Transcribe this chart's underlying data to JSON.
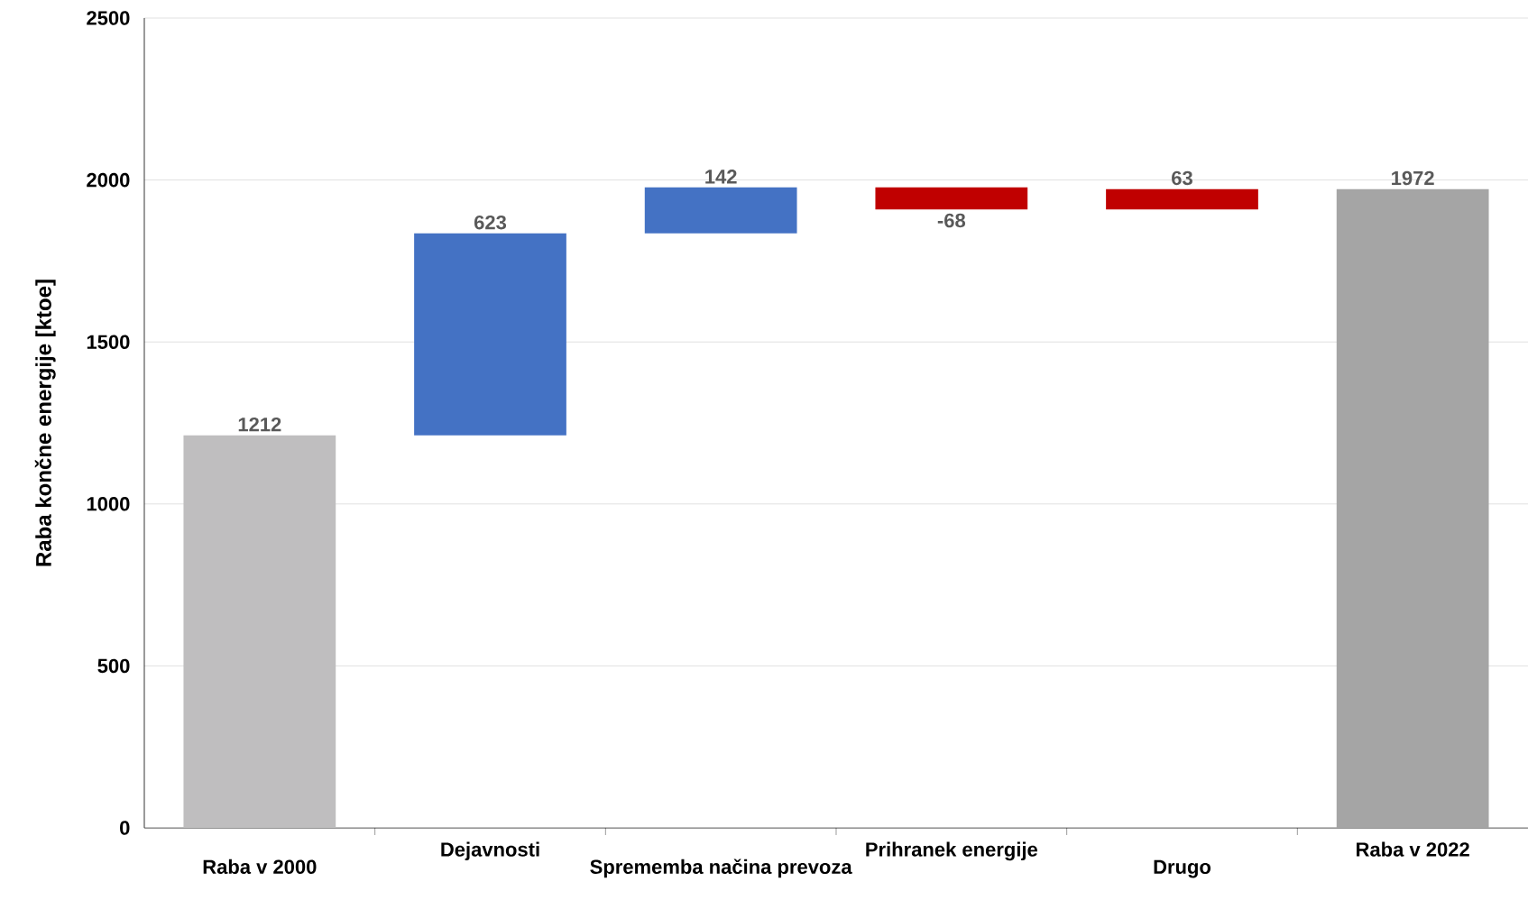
{
  "chart_data": {
    "type": "bar",
    "ylabel": "Raba končne energije [ktoe]",
    "categories": [
      "Raba v 2000",
      "Dejavnosti",
      "Sprememba  načina prevoza",
      "Prihranek energije",
      "Drugo",
      "Raba v 2022"
    ],
    "values": [
      1212,
      623,
      142,
      -68,
      63,
      1972
    ],
    "base": [
      0,
      1212,
      1835,
      1977,
      1909,
      0
    ],
    "colors": [
      "#bfbebf",
      "#4472c4",
      "#4472c4",
      "#c00000",
      "#c00000",
      "#a5a5a5"
    ],
    "ylim": [
      0,
      2500
    ],
    "yticks": [
      0,
      500,
      1000,
      1500,
      2000,
      2500
    ],
    "grid": "y",
    "data_labels": true
  }
}
